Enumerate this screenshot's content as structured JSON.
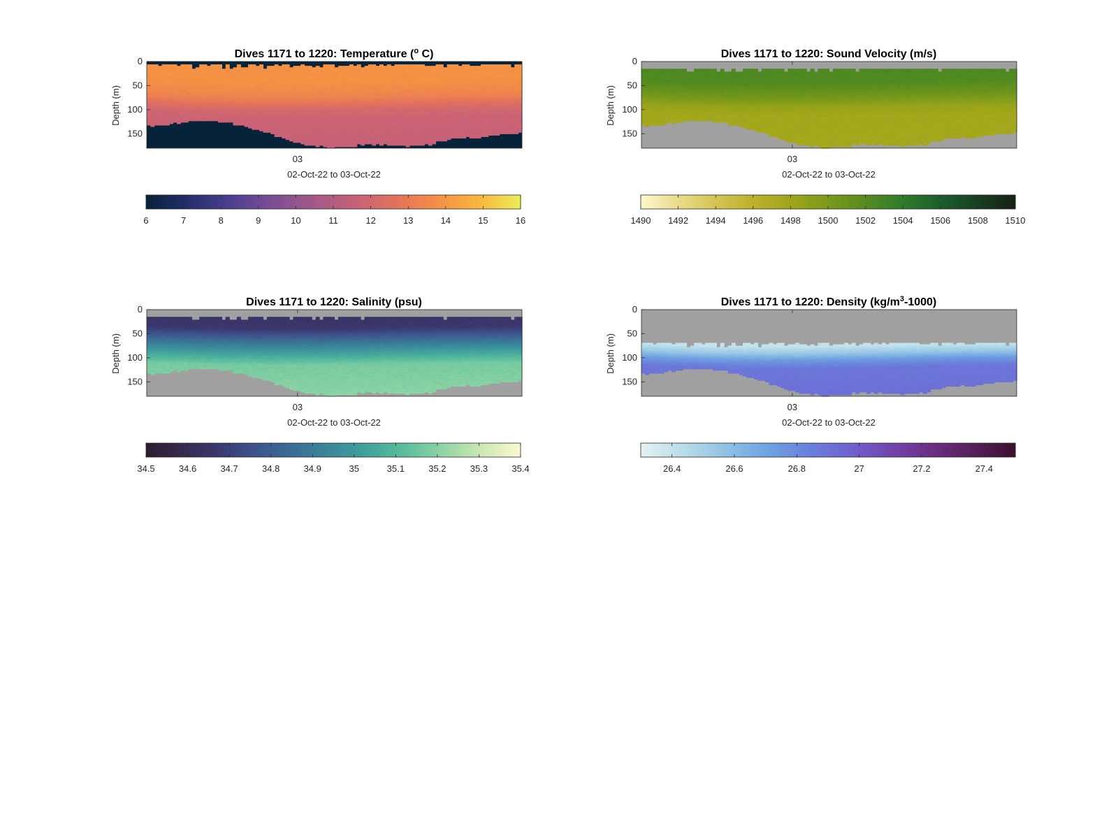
{
  "chart_data": [
    {
      "type": "heatmap",
      "title_prefix": "Dives 1171 to 1220: Temperature (",
      "title_sup": "o",
      "title_suffix": " C)",
      "ylabel": "Depth (m)",
      "yticks": [
        0,
        50,
        100,
        150
      ],
      "ylim": [
        0,
        180
      ],
      "yreversed": true,
      "xtick_labels": [
        "03"
      ],
      "xlabel": "02-Oct-22 to 03-Oct-22",
      "colorbar": {
        "range": [
          6,
          16
        ],
        "ticks": [
          "6",
          "7",
          "8",
          "9",
          "10",
          "11",
          "12",
          "13",
          "14",
          "15",
          "16"
        ]
      },
      "colormap": [
        "#062339",
        "#232d6a",
        "#4b3f8f",
        "#7a4d94",
        "#a25887",
        "#c5607a",
        "#e2715d",
        "#f48f45",
        "#fab63e",
        "#e9f05a"
      ],
      "nodata_color": "#062339",
      "upper_value": 13.9,
      "lower_value": 11.8,
      "surface_depth_m": 7,
      "bottom_depth_m": [
        135,
        132,
        128,
        126,
        124,
        123,
        125,
        130,
        138,
        146,
        155,
        164,
        170,
        175,
        178,
        178,
        175,
        172,
        172,
        174,
        176,
        175,
        170,
        164,
        160,
        158,
        155,
        152,
        150,
        147
      ],
      "levels": [
        [
          0,
          13.9
        ],
        [
          40,
          13.8
        ],
        [
          70,
          13.3
        ],
        [
          90,
          12.3
        ],
        [
          110,
          11.8
        ],
        [
          180,
          11.6
        ]
      ],
      "diagonal_shift": 0.2
    },
    {
      "type": "heatmap",
      "title_prefix": "Dives 1171 to 1220: Sound Velocity (m/s)",
      "title_sup": "",
      "title_suffix": "",
      "ylabel": "Depth (m)",
      "yticks": [
        0,
        50,
        100,
        150
      ],
      "ylim": [
        0,
        180
      ],
      "yreversed": true,
      "xtick_labels": [
        "03"
      ],
      "xlabel": "02-Oct-22 to 03-Oct-22",
      "colorbar": {
        "range": [
          1490,
          1510
        ],
        "ticks": [
          "1490",
          "1492",
          "1494",
          "1496",
          "1498",
          "1500",
          "1502",
          "1504",
          "1506",
          "1508",
          "1510"
        ]
      },
      "colormap": [
        "#fdf7cd",
        "#e8dc8c",
        "#d3c553",
        "#bcb22b",
        "#9fa51a",
        "#7c9a1b",
        "#568c1f",
        "#2f7b2b",
        "#1c5e2b",
        "#173f22",
        "#182015"
      ],
      "nodata_color": "#a0a0a0",
      "upper_value": 1502.4,
      "lower_value": 1497.6,
      "surface_depth_m": 15,
      "bottom_depth_m": [
        135,
        132,
        128,
        126,
        124,
        123,
        125,
        130,
        138,
        146,
        155,
        164,
        170,
        175,
        178,
        178,
        175,
        172,
        172,
        174,
        176,
        175,
        170,
        164,
        160,
        158,
        155,
        152,
        150,
        147
      ],
      "levels": [
        [
          0,
          1502.5
        ],
        [
          40,
          1502.2
        ],
        [
          70,
          1500.4
        ],
        [
          90,
          1498.4
        ],
        [
          110,
          1497.7
        ],
        [
          180,
          1497.6
        ]
      ],
      "diagonal_shift": 0.2
    },
    {
      "type": "heatmap",
      "title_prefix": "Dives 1171 to 1220: Salinity (psu)",
      "title_sup": "",
      "title_suffix": "",
      "ylabel": "Depth (m)",
      "yticks": [
        0,
        50,
        100,
        150
      ],
      "ylim": [
        0,
        180
      ],
      "yreversed": true,
      "xtick_labels": [
        "03"
      ],
      "xlabel": "02-Oct-22 to 03-Oct-22",
      "colorbar": {
        "range": [
          34.5,
          35.4
        ],
        "ticks": [
          "34.5",
          "34.6",
          "34.7",
          "34.8",
          "34.9",
          "35",
          "35.1",
          "35.2",
          "35.3",
          "35.4"
        ]
      },
      "colormap": [
        "#2a1d2e",
        "#36294f",
        "#3b3a72",
        "#3d558b",
        "#3b6f96",
        "#3a8a9b",
        "#43a59c",
        "#5fc09c",
        "#95d6a6",
        "#cfe8b4",
        "#fcf8d0"
      ],
      "nodata_color": "#a0a0a0",
      "upper_value": 34.67,
      "lower_value": 35.2,
      "surface_depth_m": 15,
      "bottom_depth_m": [
        135,
        132,
        128,
        126,
        124,
        123,
        125,
        130,
        138,
        146,
        155,
        164,
        170,
        175,
        178,
        178,
        175,
        172,
        172,
        174,
        176,
        175,
        170,
        164,
        160,
        158,
        155,
        152,
        150,
        147
      ],
      "levels": [
        [
          0,
          34.64
        ],
        [
          35,
          34.67
        ],
        [
          60,
          34.85
        ],
        [
          85,
          35.02
        ],
        [
          110,
          35.17
        ],
        [
          180,
          35.21
        ]
      ],
      "diagonal_shift": 0.15
    },
    {
      "type": "heatmap",
      "title_prefix": "Dives 1171 to 1220: Density (kg/m",
      "title_sup": "3",
      "title_suffix": "-1000)",
      "ylabel": "Depth (m)",
      "yticks": [
        0,
        50,
        100,
        150
      ],
      "ylim": [
        0,
        180
      ],
      "yreversed": true,
      "xtick_labels": [
        "03"
      ],
      "xlabel": "02-Oct-22 to 03-Oct-22",
      "colorbar": {
        "range": [
          26.3,
          27.5
        ],
        "ticks": [
          "26.4",
          "26.6",
          "26.8",
          "27",
          "27.2",
          "27.4"
        ]
      },
      "colormap": [
        "#e5f2f3",
        "#b9dde9",
        "#91c3e5",
        "#70a4e3",
        "#6a82dc",
        "#6f63d0",
        "#7345ae",
        "#6c2e84",
        "#56215a",
        "#3b0f2e"
      ],
      "nodata_color": "#a0a0a0",
      "upper_value": 26.45,
      "lower_value": 26.9,
      "surface_depth_m": 70,
      "bottom_depth_m": [
        135,
        132,
        128,
        126,
        124,
        123,
        125,
        130,
        138,
        146,
        155,
        164,
        170,
        175,
        178,
        178,
        175,
        172,
        172,
        174,
        176,
        175,
        170,
        164,
        160,
        158,
        155,
        152,
        150,
        147
      ],
      "levels": [
        [
          70,
          26.4
        ],
        [
          85,
          26.55
        ],
        [
          100,
          26.75
        ],
        [
          115,
          26.88
        ],
        [
          180,
          26.92
        ]
      ],
      "diagonal_shift": 0.2
    }
  ]
}
